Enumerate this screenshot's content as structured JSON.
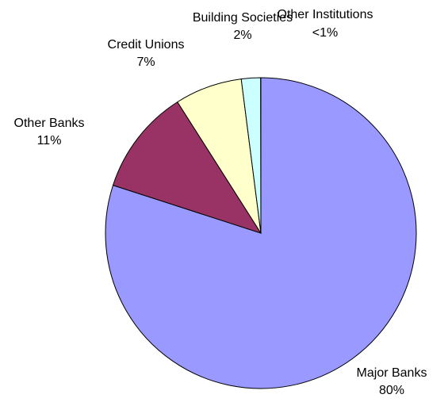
{
  "chart_data": {
    "type": "pie",
    "start_angle_deg": 90,
    "direction": "clockwise",
    "slices": [
      {
        "name": "Major Banks",
        "value": 80,
        "label_value": "80%",
        "color": "#9999ff"
      },
      {
        "name": "Other Banks",
        "value": 11,
        "label_value": "11%",
        "color": "#993366"
      },
      {
        "name": "Credit Unions",
        "value": 7,
        "label_value": "7%",
        "color": "#ffffcc"
      },
      {
        "name": "Building Societies",
        "value": 2,
        "label_value": "2%",
        "color": "#ccffff"
      },
      {
        "name": "Other Institutions",
        "value": 0.02,
        "label_value": "<1%",
        "color": "#ccffff"
      }
    ]
  }
}
